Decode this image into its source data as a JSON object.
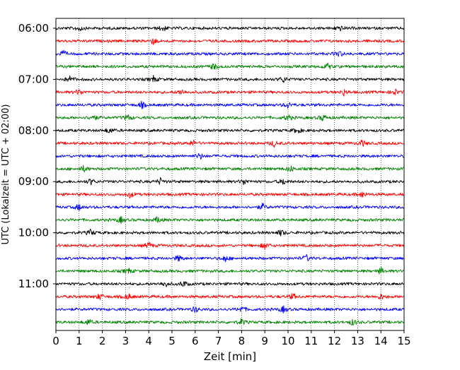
{
  "chart_data": {
    "type": "line",
    "xlabel": "Zeit  [min]",
    "ylabel": "UTC (Lokalzeit = UTC + 02:00)",
    "xlim": [
      0,
      15
    ],
    "x_ticks": [
      "0",
      "1",
      "2",
      "3",
      "4",
      "5",
      "6",
      "7",
      "8",
      "9",
      "10",
      "11",
      "12",
      "13",
      "14",
      "15"
    ],
    "y_tick_labels": [
      "06:00",
      "07:00",
      "08:00",
      "09:00",
      "10:00",
      "11:00"
    ],
    "x_grid": true,
    "trace_interval_minutes": 15,
    "first_trace_start": "06:00",
    "trace_colors": [
      "#000000",
      "#ff0000",
      "#0000ff",
      "#008000"
    ],
    "traces": [
      {
        "start": "06:00",
        "color": "black",
        "events": [
          1.0,
          4.6,
          12.2
        ]
      },
      {
        "start": "06:15",
        "color": "red",
        "events": [
          4.2
        ]
      },
      {
        "start": "06:30",
        "color": "blue",
        "events": [
          0.3,
          12.2
        ]
      },
      {
        "start": "06:45",
        "color": "green",
        "events": [
          6.8,
          11.7
        ]
      },
      {
        "start": "07:00",
        "color": "black",
        "events": [
          0.6,
          4.2,
          9.8
        ]
      },
      {
        "start": "07:15",
        "color": "red",
        "events": [
          1.0,
          5.4,
          12.4,
          14.6
        ]
      },
      {
        "start": "07:30",
        "color": "blue",
        "events": [
          3.7,
          10.0
        ]
      },
      {
        "start": "07:45",
        "color": "green",
        "events": [
          1.6,
          3.1,
          10.0,
          11.5
        ]
      },
      {
        "start": "08:00",
        "color": "black",
        "events": [
          2.3,
          10.4
        ]
      },
      {
        "start": "08:15",
        "color": "red",
        "events": [
          5.9,
          9.4,
          13.2
        ]
      },
      {
        "start": "08:30",
        "color": "blue",
        "events": [
          6.2
        ]
      },
      {
        "start": "08:45",
        "color": "green",
        "events": [
          1.2,
          10.1
        ]
      },
      {
        "start": "09:00",
        "color": "black",
        "events": [
          1.5,
          4.5,
          8.1,
          9.8
        ]
      },
      {
        "start": "09:15",
        "color": "red",
        "events": [
          3.2,
          13.2
        ]
      },
      {
        "start": "09:30",
        "color": "blue",
        "events": [
          1.0,
          8.9
        ]
      },
      {
        "start": "09:45",
        "color": "green",
        "events": [
          2.8,
          4.4
        ]
      },
      {
        "start": "10:00",
        "color": "black",
        "events": [
          1.5,
          9.7
        ]
      },
      {
        "start": "10:15",
        "color": "red",
        "events": [
          4.0,
          9.0
        ]
      },
      {
        "start": "10:30",
        "color": "blue",
        "events": [
          5.3,
          7.3,
          10.8
        ]
      },
      {
        "start": "10:45",
        "color": "green",
        "events": [
          3.1,
          14.0
        ]
      },
      {
        "start": "11:00",
        "color": "black",
        "events": [
          4.7,
          5.5
        ]
      },
      {
        "start": "11:15",
        "color": "red",
        "events": [
          1.9,
          3.1,
          10.2,
          14.0
        ]
      },
      {
        "start": "11:30",
        "color": "blue",
        "events": [
          6.0,
          8.0,
          9.8
        ]
      },
      {
        "start": "11:45",
        "color": "green",
        "events": [
          1.4,
          8.0,
          12.8
        ]
      }
    ]
  }
}
